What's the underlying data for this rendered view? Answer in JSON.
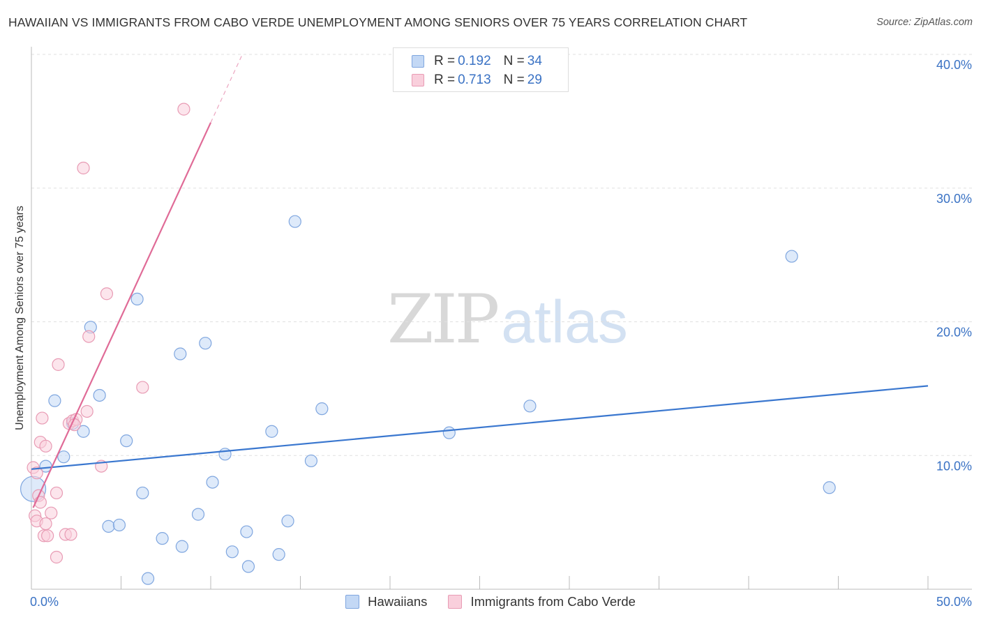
{
  "title": "HAWAIIAN VS IMMIGRANTS FROM CABO VERDE UNEMPLOYMENT AMONG SENIORS OVER 75 YEARS CORRELATION CHART",
  "source": "Source: ZipAtlas.com",
  "watermark": {
    "zip": "ZIP",
    "atlas": "atlas"
  },
  "legend_top": {
    "rows": [
      {
        "r_label": "R = ",
        "r_value": "0.192",
        "n_label": "N = ",
        "n_value": "34"
      },
      {
        "r_label": "R = ",
        "r_value": "0.713",
        "n_label": "N = ",
        "n_value": "29"
      }
    ]
  },
  "legend_bottom": [
    {
      "label": "Hawaiians"
    },
    {
      "label": "Immigrants from Cabo Verde"
    }
  ],
  "colors": {
    "blue_fill": "#c3d8f5",
    "blue_stroke": "#7fa6df",
    "blue_line": "#3a77cf",
    "pink_fill": "#f9cfdc",
    "pink_stroke": "#e89bb4",
    "pink_line": "#e06b97",
    "tick_text": "#3a72c4",
    "grid": "#e0e0e0"
  },
  "chart_data": {
    "type": "scatter",
    "title": "HAWAIIAN VS IMMIGRANTS FROM CABO VERDE UNEMPLOYMENT AMONG SENIORS OVER 75 YEARS CORRELATION CHART",
    "xlabel": "",
    "ylabel": "Unemployment Among Seniors over 75 years",
    "xlim": [
      0,
      50
    ],
    "ylim": [
      0,
      40
    ],
    "x_tick_labels": {
      "min": "0.0%",
      "max": "50.0%"
    },
    "y_ticks": [
      {
        "value": 10,
        "label": "10.0%"
      },
      {
        "value": 20,
        "label": "20.0%"
      },
      {
        "value": 30,
        "label": "30.0%"
      },
      {
        "value": 40,
        "label": "40.0%"
      }
    ],
    "series": [
      {
        "name": "Hawaiians",
        "color_key": "blue",
        "r": 0.192,
        "n": 34,
        "trend": {
          "x": [
            0,
            50
          ],
          "y": [
            8.98,
            15.21
          ]
        },
        "points": [
          {
            "x": 0.1,
            "y": 7.5,
            "big": true
          },
          {
            "x": 0.8,
            "y": 9.2
          },
          {
            "x": 1.3,
            "y": 14.1
          },
          {
            "x": 1.8,
            "y": 9.9
          },
          {
            "x": 2.3,
            "y": 12.4
          },
          {
            "x": 2.9,
            "y": 11.8
          },
          {
            "x": 3.3,
            "y": 19.6
          },
          {
            "x": 3.8,
            "y": 14.5
          },
          {
            "x": 4.3,
            "y": 4.7
          },
          {
            "x": 4.9,
            "y": 4.8
          },
          {
            "x": 5.3,
            "y": 11.1
          },
          {
            "x": 5.9,
            "y": 21.7
          },
          {
            "x": 6.2,
            "y": 7.2
          },
          {
            "x": 6.5,
            "y": 0.8
          },
          {
            "x": 7.3,
            "y": 3.8
          },
          {
            "x": 8.3,
            "y": 17.6
          },
          {
            "x": 8.4,
            "y": 3.2
          },
          {
            "x": 9.3,
            "y": 5.6
          },
          {
            "x": 9.7,
            "y": 18.4
          },
          {
            "x": 10.1,
            "y": 8.0
          },
          {
            "x": 10.8,
            "y": 10.1
          },
          {
            "x": 11.2,
            "y": 2.8
          },
          {
            "x": 12.0,
            "y": 4.3
          },
          {
            "x": 12.1,
            "y": 1.7
          },
          {
            "x": 13.4,
            "y": 11.8
          },
          {
            "x": 13.8,
            "y": 2.6
          },
          {
            "x": 14.3,
            "y": 5.1
          },
          {
            "x": 14.7,
            "y": 27.5
          },
          {
            "x": 15.6,
            "y": 9.6
          },
          {
            "x": 16.2,
            "y": 13.5
          },
          {
            "x": 23.3,
            "y": 11.7
          },
          {
            "x": 27.8,
            "y": 13.7
          },
          {
            "x": 42.4,
            "y": 24.9
          },
          {
            "x": 44.5,
            "y": 7.6
          }
        ]
      },
      {
        "name": "Immigrants from Cabo Verde",
        "color_key": "pink",
        "r": 0.713,
        "n": 29,
        "trend": {
          "x": [
            0.1,
            10.0
          ],
          "y": [
            6.1,
            34.9
          ]
        },
        "trend_dashed": {
          "x": [
            10.0,
            11.8
          ],
          "y": [
            34.9,
            40.1
          ]
        },
        "points": [
          {
            "x": 0.1,
            "y": 9.1
          },
          {
            "x": 0.2,
            "y": 5.5
          },
          {
            "x": 0.3,
            "y": 8.7
          },
          {
            "x": 0.3,
            "y": 5.1
          },
          {
            "x": 0.4,
            "y": 7.0
          },
          {
            "x": 0.5,
            "y": 6.5
          },
          {
            "x": 0.5,
            "y": 11.0
          },
          {
            "x": 0.6,
            "y": 12.8
          },
          {
            "x": 0.7,
            "y": 4.0
          },
          {
            "x": 0.8,
            "y": 4.9
          },
          {
            "x": 0.8,
            "y": 10.7
          },
          {
            "x": 0.9,
            "y": 4.0
          },
          {
            "x": 1.1,
            "y": 5.7
          },
          {
            "x": 1.4,
            "y": 2.4
          },
          {
            "x": 1.4,
            "y": 7.2
          },
          {
            "x": 1.5,
            "y": 16.8
          },
          {
            "x": 1.9,
            "y": 4.1
          },
          {
            "x": 2.1,
            "y": 12.4
          },
          {
            "x": 2.2,
            "y": 4.1
          },
          {
            "x": 2.3,
            "y": 12.6
          },
          {
            "x": 2.5,
            "y": 12.7
          },
          {
            "x": 2.9,
            "y": 31.5
          },
          {
            "x": 3.1,
            "y": 13.3
          },
          {
            "x": 3.2,
            "y": 18.9
          },
          {
            "x": 3.9,
            "y": 9.2
          },
          {
            "x": 4.2,
            "y": 22.1
          },
          {
            "x": 6.2,
            "y": 15.1
          },
          {
            "x": 8.5,
            "y": 35.9
          },
          {
            "x": 2.4,
            "y": 12.3
          }
        ]
      }
    ]
  }
}
